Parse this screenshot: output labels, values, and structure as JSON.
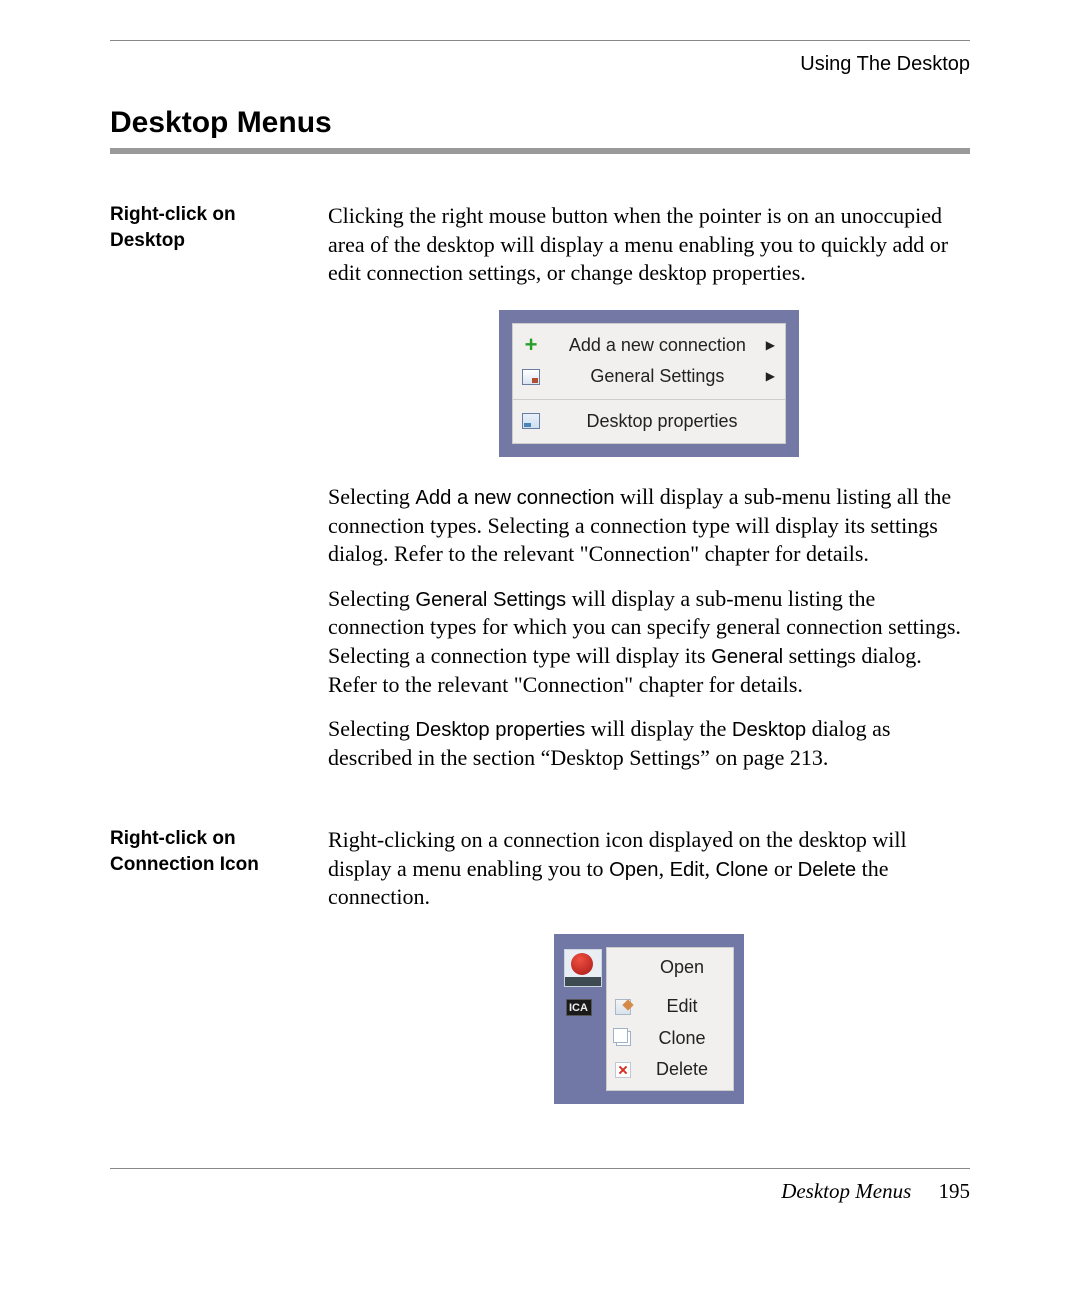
{
  "header": {
    "running_head": "Using The Desktop",
    "title": "Desktop Menus"
  },
  "section1": {
    "side_head": "Right-click on Desktop",
    "para1": "Clicking the right mouse button when the pointer is on an unoccupied area of the desktop will display a menu enabling you to quickly add or edit connection settings, or change desktop properties.",
    "menu": {
      "bg_color": "#7378a5",
      "panel_color": "#f1f0ee",
      "items": [
        {
          "label": "Add a new connection",
          "has_submenu": true
        },
        {
          "label": "General Settings",
          "has_submenu": true
        },
        {
          "label": "Desktop properties",
          "has_submenu": false
        }
      ]
    },
    "para2_a": "Selecting ",
    "para2_cmd": "Add a new connection",
    "para2_b": " will display a sub-menu listing all the connection types. Selecting a connection type will display its settings dialog. Refer to the relevant \"Connection\" chapter for details.",
    "para3_a": "Selecting ",
    "para3_cmd": "General Settings",
    "para3_b": " will display a sub-menu listing the connection types for which you can specify general connection settings. Selecting a connection type will display its ",
    "para3_cmd2": "General",
    "para3_c": " settings dialog. Refer to the relevant \"Connection\" chapter for details.",
    "para4_a": "Selecting ",
    "para4_cmd": "Desktop properties",
    "para4_b": " will display the ",
    "para4_cmd2": "Desktop",
    "para4_c": " dialog as described in the section “Desktop Settings” on page 213."
  },
  "section2": {
    "side_head": "Right-click on Connection Icon",
    "para1_a": "Right-clicking on a connection icon displayed on the desktop will display a menu enabling you to ",
    "cmd_open": "Open",
    "sep1": ",  ",
    "cmd_edit": "Edit",
    "sep2": ", ",
    "cmd_clone": "Clone",
    "sep3": " or ",
    "cmd_delete": "Delete",
    "para1_b": " the connection.",
    "menu": {
      "bg_color": "#7278a5",
      "panel_color": "#f1f0ee",
      "ica_label": "ICA",
      "items": [
        {
          "label": "Open"
        },
        {
          "label": "Edit"
        },
        {
          "label": "Clone"
        },
        {
          "label": "Delete"
        }
      ]
    }
  },
  "footer": {
    "section_name": "Desktop Menus",
    "page_number": "195"
  },
  "colors": {
    "rule_gray": "#999999",
    "hairline": "#888888",
    "menu_border": "#7378a5"
  }
}
